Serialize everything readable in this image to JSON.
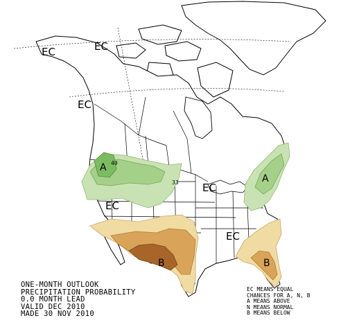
{
  "title_lines": [
    "ONE-MONTH OUTLOOK",
    "PRECIPITATION PROBABILITY",
    "0.0 MONTH LEAD",
    "VALID DEC 2010",
    "MADE 30 NOV 2010"
  ],
  "legend_lines": [
    "EC MEANS EQUAL",
    "CHANCES FOR A, N, B",
    "A MEANS ABOVE",
    "N MEANS NORMAL",
    "B MEANS BELOW"
  ],
  "region_labels": {
    "ec": "EC",
    "above": "A",
    "below": "B"
  },
  "contour_labels": {
    "c40": "40",
    "c33": "33"
  },
  "colors": {
    "above_light": "#c9e2b3",
    "above_mid": "#a5d08a",
    "above_dark": "#7dbb62",
    "below_light": "#f0dca3",
    "below_mid": "#d9a45a",
    "below_dark": "#a8652a"
  }
}
